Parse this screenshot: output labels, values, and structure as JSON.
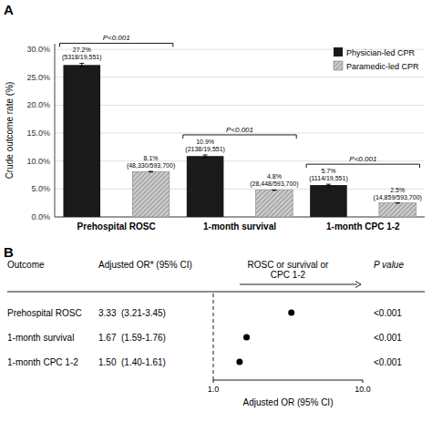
{
  "chart_data": [
    {
      "type": "bar",
      "panel_label": "A",
      "categories": [
        "Prehospital ROSC",
        "1-month survival",
        "1-month CPC 1-2"
      ],
      "series": [
        {
          "name": "Physician-led CPR",
          "color": "#1a1a1a",
          "values": [
            27.2,
            10.9,
            5.7
          ],
          "errors": [
            0.3,
            0.2,
            0.15
          ],
          "value_labels": [
            "27.2%\n(5318/19,551)",
            "10.9%\n(2138/19,551)",
            "5.7%\n(1114/19,551)"
          ]
        },
        {
          "name": "Paramedic-led CPR",
          "color": "#c8c8c8",
          "values": [
            8.1,
            4.8,
            2.5
          ],
          "errors": [
            0.05,
            0.03,
            0.02
          ],
          "value_labels": [
            "8.1%\n(48,330/593,700)",
            "4.8%\n(28,448/593,700)",
            "2.5%\n(14,859/593,700)"
          ]
        }
      ],
      "ylabel": "Crude outcome rate (%)",
      "ylim": [
        0,
        31
      ],
      "yticks": [
        {
          "value": 0.0,
          "label": "0.0%"
        },
        {
          "value": 5.0,
          "label": "5.0%"
        },
        {
          "value": 10.0,
          "label": "10.0%"
        },
        {
          "value": 15.0,
          "label": "15.0%"
        },
        {
          "value": 20.0,
          "label": "20.0%"
        },
        {
          "value": 25.0,
          "label": "25.0%"
        },
        {
          "value": 30.0,
          "label": "30.0%"
        }
      ],
      "annotations": [
        "P<0.001",
        "P<0.001",
        "P<0.001"
      ],
      "grid": true,
      "legend": "upper right",
      "data_labels": true
    },
    {
      "type": "forest",
      "panel_label": "B",
      "headers": [
        "Outcome",
        "Adjusted OR* (95% CI)",
        "ROSC or survival or\nCPC 1-2",
        "P value"
      ],
      "categories": [
        "Prehospital ROSC",
        "1-month survival",
        "1-month CPC 1-2"
      ],
      "values": [
        3.33,
        1.67,
        1.5
      ],
      "value_labels": [
        "3.33  (3.21-3.45)",
        "1.67  (1.59-1.76)",
        "1.50  (1.40-1.61)"
      ],
      "p_values": [
        "<0.001",
        "<0.001",
        "<0.001"
      ],
      "xlabel": "Adjusted OR (95% CI)",
      "log": "x",
      "xlim": [
        1.0,
        10.0
      ],
      "xticks": [
        {
          "value": 1.0,
          "label": "1.0"
        },
        {
          "value": 10.0,
          "label": "10.0"
        }
      ],
      "reference": 1.0,
      "arrow_start": 1.5
    }
  ]
}
